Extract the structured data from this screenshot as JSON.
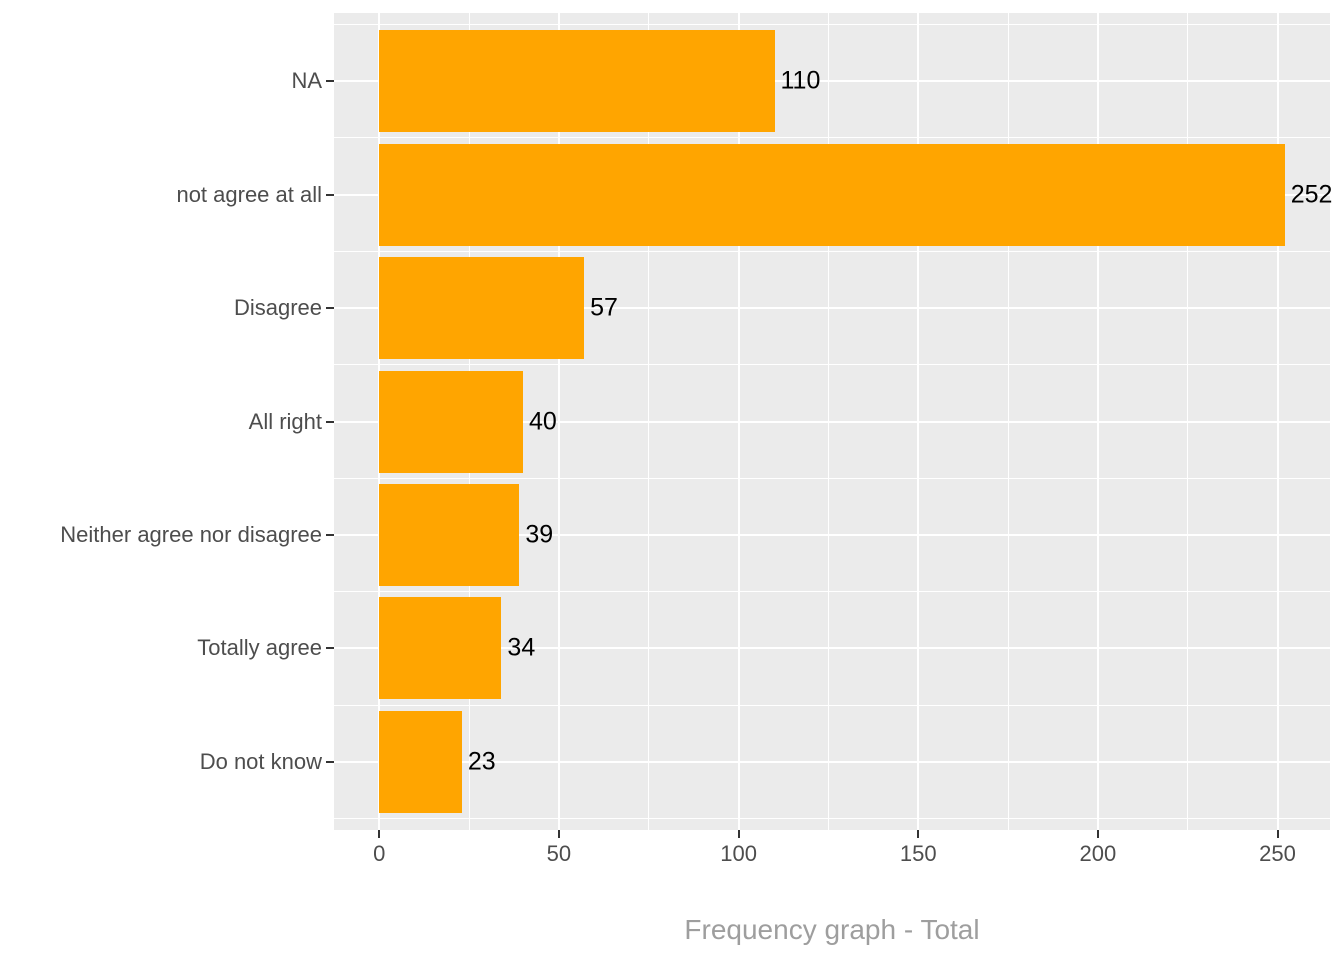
{
  "chart_data": {
    "type": "bar",
    "orientation": "horizontal",
    "categories": [
      "NA",
      "not agree at all",
      "Disagree",
      "All right",
      "Neither agree nor disagree",
      "Totally agree",
      "Do not know"
    ],
    "values": [
      110,
      252,
      57,
      40,
      39,
      34,
      23
    ],
    "bar_labels": [
      "110",
      "252",
      "57",
      "40",
      "39",
      "34",
      "23"
    ],
    "title": "",
    "xlabel": "Frequency graph - Total",
    "ylabel": "",
    "x_tick_values": [
      0,
      50,
      100,
      150,
      200,
      250
    ],
    "x_tick_labels": [
      "0",
      "50",
      "100",
      "150",
      "200",
      "250"
    ],
    "x_minor_tick_values": [
      25,
      75,
      125,
      175,
      225
    ],
    "xlim": [
      -12.6,
      264.6
    ],
    "grid": true,
    "legend_position": "none",
    "colors": {
      "bar": "#FFA500",
      "panel_background": "#EBEBEB",
      "gridline": "#FFFFFF",
      "axis_text": "#4D4D4D",
      "value_label": "#000000",
      "axis_title": "#9E9E9E",
      "tick_mark": "#333333",
      "figure_background": "#FFFFFF"
    }
  }
}
